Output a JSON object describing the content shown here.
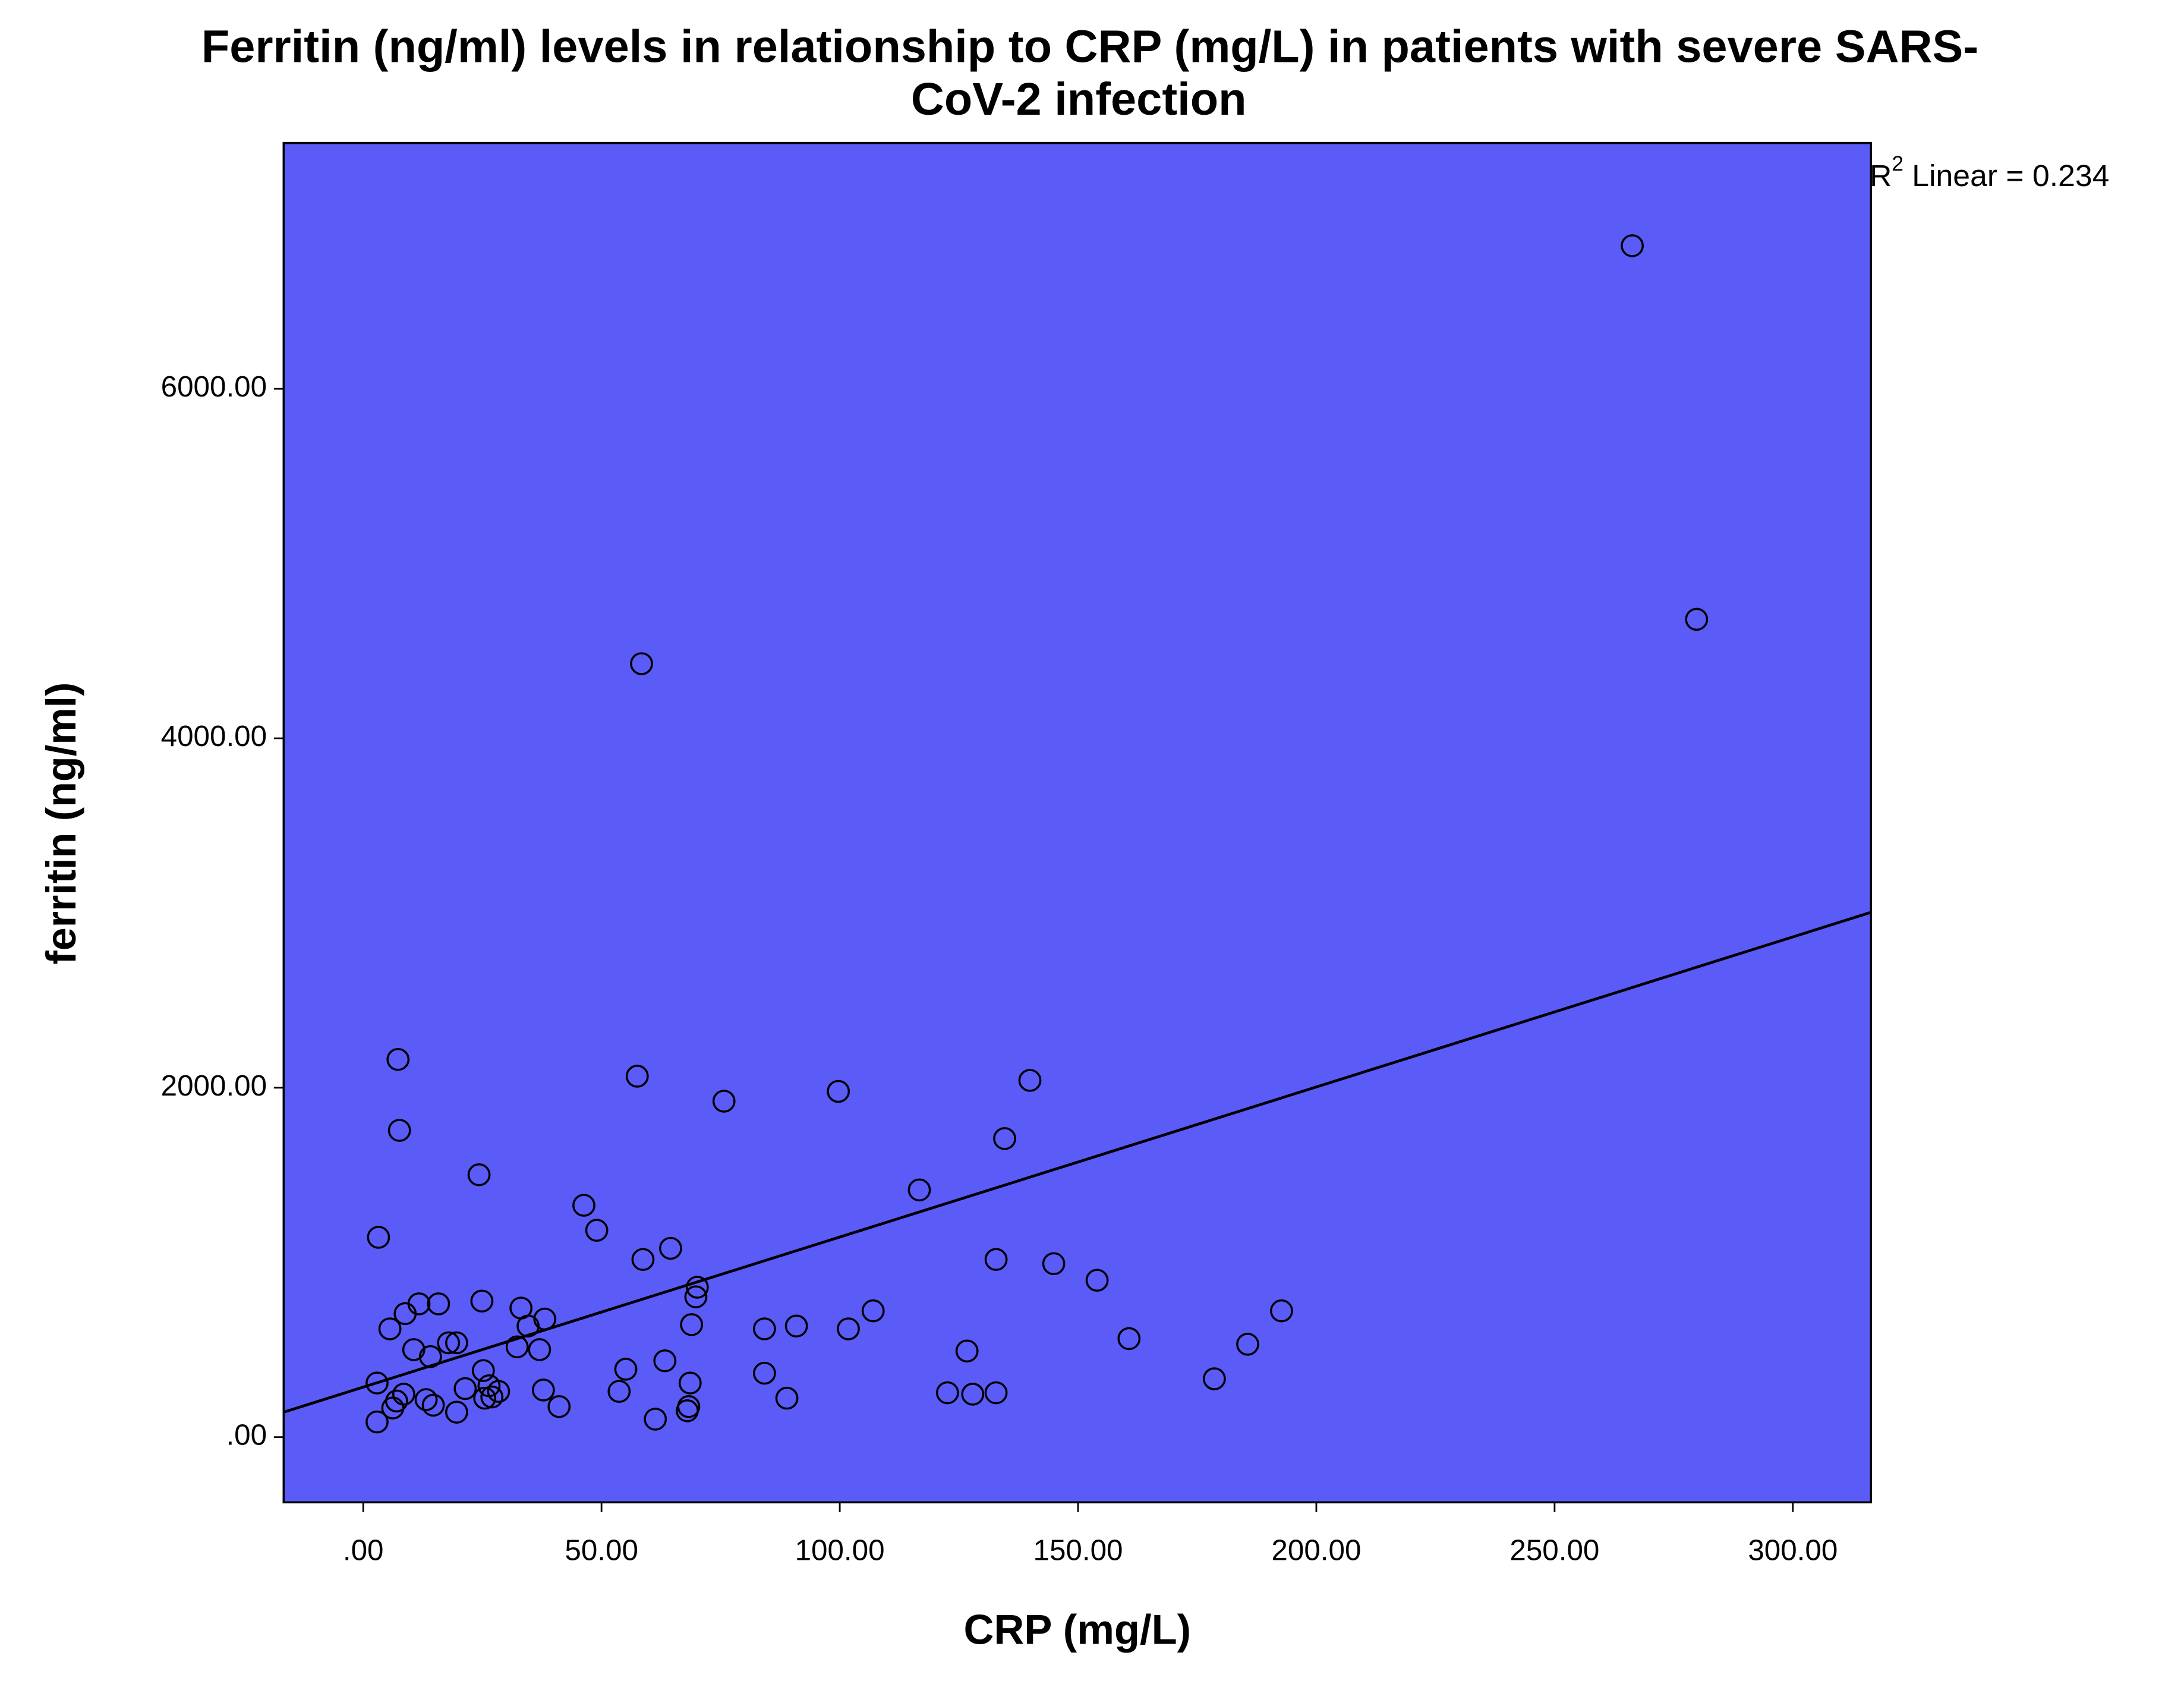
{
  "chart_data": {
    "type": "scatter",
    "title": [
      "Ferritin (ng/ml) levels in relationship to CRP (mg/L) in patients with severe SARS-",
      "CoV-2 infection"
    ],
    "x_label": "CRP (mg/L)",
    "y_label": "ferritin (ng/ml)",
    "annotation": {
      "prefix": "R",
      "superscript": "2",
      "text": " Linear = 0.234"
    },
    "background": "#5b5bf8",
    "color": "#000000",
    "xlim": [
      -16.7,
      316.4
    ],
    "ylim": [
      -373,
      7407
    ],
    "xticks": [
      {
        "value": 0,
        "label": ".00"
      },
      {
        "value": 50,
        "label": "50.00"
      },
      {
        "value": 100,
        "label": "100.00"
      },
      {
        "value": 150,
        "label": "150.00"
      },
      {
        "value": 200,
        "label": "200.00"
      },
      {
        "value": 250,
        "label": "250.00"
      },
      {
        "value": 300,
        "label": "300.00"
      }
    ],
    "yticks": [
      {
        "value": 0,
        "label": ".00"
      },
      {
        "value": 2000,
        "label": "2000.00"
      },
      {
        "value": 4000,
        "label": "4000.00"
      },
      {
        "value": 6000,
        "label": "6000.00"
      }
    ],
    "x": [
      266.3,
      279.8,
      58.4,
      7.3,
      57.5,
      75.7,
      99.7,
      139.9,
      7.6,
      134.6,
      24.3,
      116.7,
      46.3,
      49.0,
      3.2,
      64.5,
      58.7,
      132.8,
      144.9,
      154.0,
      70.1,
      69.8,
      24.9,
      11.7,
      15.8,
      33.1,
      8.8,
      192.7,
      107.0,
      38.1,
      5.6,
      34.6,
      68.9,
      90.9,
      84.2,
      101.8,
      160.7,
      185.6,
      17.9,
      19.6,
      32.3,
      37.0,
      10.6,
      126.7,
      14.1,
      63.3,
      55.1,
      25.2,
      84.2,
      178.6,
      2.9,
      68.6,
      26.4,
      37.8,
      21.4,
      53.7,
      28.4,
      122.6,
      127.9,
      132.8,
      8.5,
      25.5,
      27.0,
      13.2,
      88.9,
      7.0,
      14.7,
      41.1,
      68.3,
      68.0,
      6.2,
      19.6,
      61.3,
      2.9
    ],
    "values": [
      6819,
      4681,
      4427,
      2162,
      2066,
      1923,
      1979,
      2042,
      1756,
      1709,
      1502,
      1415,
      1327,
      1184,
      1144,
      1081,
      1017,
      1017,
      993,
      898,
      858,
      803,
      779,
      763,
      763,
      739,
      707,
      723,
      723,
      676,
      620,
      636,
      644,
      636,
      620,
      620,
      564,
      532,
      540,
      540,
      517,
      501,
      501,
      493,
      461,
      437,
      389,
      381,
      366,
      334,
      310,
      310,
      294,
      270,
      278,
      262,
      262,
      254,
      246,
      254,
      246,
      223,
      230,
      215,
      223,
      207,
      183,
      175,
      175,
      151,
      167,
      143,
      103,
      87
    ],
    "fit_line": {
      "x": [
        -16.7,
        316.4
      ],
      "y": [
        143,
        3004
      ]
    }
  }
}
